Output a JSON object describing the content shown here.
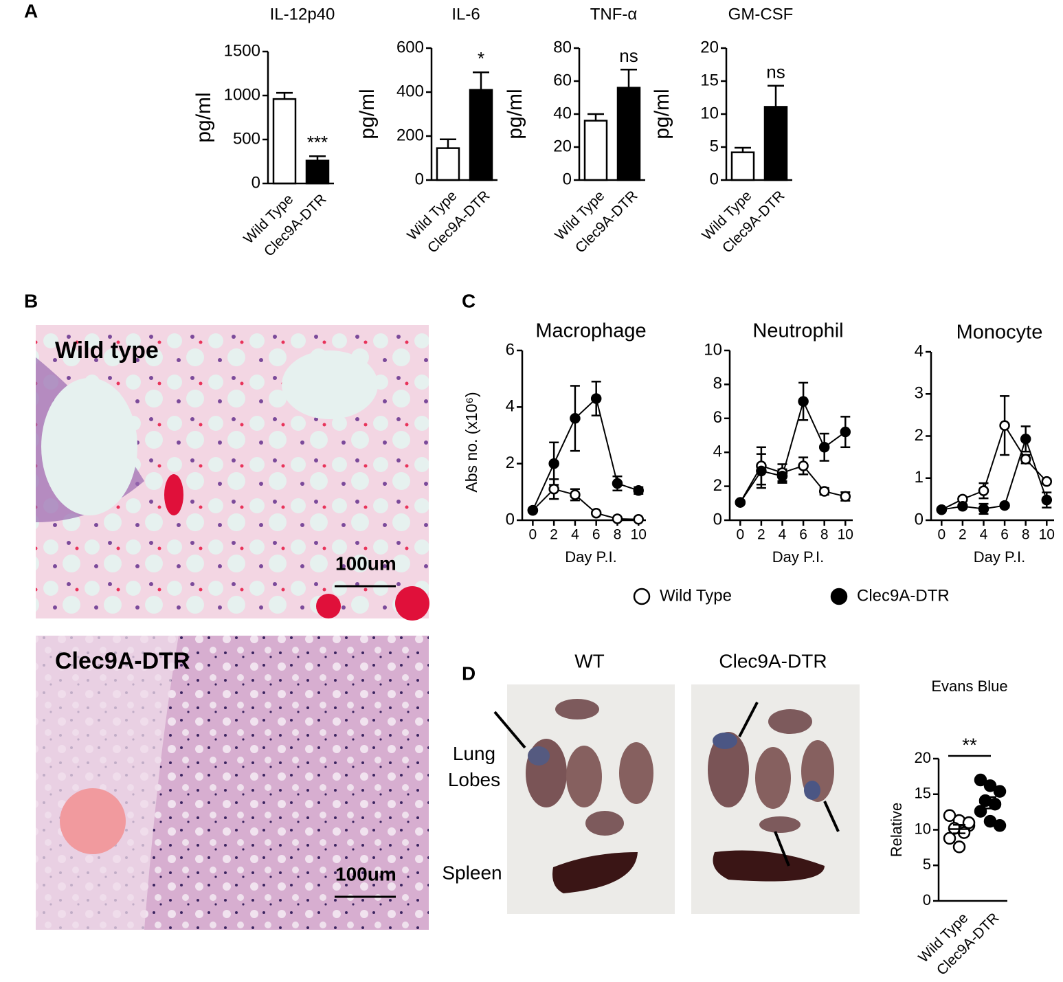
{
  "panel_labels": [
    "A",
    "B",
    "C",
    "D"
  ],
  "histology": [
    {
      "label": "Wild type",
      "scale_bar": "100um"
    },
    {
      "label": "Clec9A-DTR",
      "scale_bar": "100um"
    }
  ],
  "photos": {
    "columns": [
      "WT",
      "Clec9A-DTR"
    ],
    "row_labels": [
      "Lung Lobes",
      "Spleen"
    ]
  },
  "chart_data": [
    {
      "type": "bar",
      "title": "IL-12p40",
      "y_label": "pg/ml",
      "categories": [
        "Wild Type",
        "Clec9A-DTR"
      ],
      "values": [
        960,
        260
      ],
      "errors": [
        70,
        50
      ],
      "colors": [
        "#ffffff",
        "#000000"
      ],
      "annotation": "***",
      "ylim": [
        0,
        1500
      ],
      "yticks": [
        0,
        500,
        1000,
        1500
      ]
    },
    {
      "type": "bar",
      "title": "IL-6",
      "y_label": "pg/ml",
      "categories": [
        "Wild Type",
        "Clec9A-DTR"
      ],
      "values": [
        145,
        410
      ],
      "errors": [
        40,
        80
      ],
      "colors": [
        "#ffffff",
        "#000000"
      ],
      "annotation": "*",
      "ylim": [
        0,
        600
      ],
      "yticks": [
        0,
        200,
        400,
        600
      ]
    },
    {
      "type": "bar",
      "title": "TNF-α",
      "y_label": "pg/ml",
      "categories": [
        "Wild Type",
        "Clec9A-DTR"
      ],
      "values": [
        36,
        56
      ],
      "errors": [
        4,
        11
      ],
      "colors": [
        "#ffffff",
        "#000000"
      ],
      "annotation": "ns",
      "ylim": [
        0,
        80
      ],
      "yticks": [
        0,
        20,
        40,
        60,
        80
      ]
    },
    {
      "type": "bar",
      "title": "GM-CSF",
      "y_label": "pg/ml",
      "categories": [
        "Wild Type",
        "Clec9A-DTR"
      ],
      "values": [
        4.2,
        11.1
      ],
      "errors": [
        0.7,
        3.2
      ],
      "colors": [
        "#ffffff",
        "#000000"
      ],
      "annotation": "ns",
      "ylim": [
        0,
        20
      ],
      "yticks": [
        0,
        5,
        10,
        15,
        20
      ]
    },
    {
      "type": "line",
      "title": "Macrophage",
      "y_label": "Abs no. (x10⁶)",
      "x_label": "Day P.I.",
      "x": [
        0,
        2,
        4,
        6,
        8,
        10
      ],
      "xlim": [
        -1,
        10.7
      ],
      "xticks": [
        0,
        2,
        4,
        6,
        8,
        10
      ],
      "ylim": [
        0,
        6
      ],
      "yticks": [
        0,
        2,
        4,
        6
      ],
      "series": [
        {
          "name": "Wild Type",
          "color": "#ffffff",
          "values": [
            0.35,
            1.1,
            0.9,
            0.25,
            0.05,
            0.03
          ],
          "errors": [
            0.05,
            0.35,
            0.2,
            0.05,
            0.02,
            0.02
          ]
        },
        {
          "name": "Clec9A-DTR",
          "color": "#000000",
          "values": [
            0.35,
            2.0,
            3.6,
            4.3,
            1.3,
            1.05
          ],
          "errors": [
            0.05,
            0.75,
            1.15,
            0.6,
            0.25,
            0.12
          ]
        }
      ]
    },
    {
      "type": "line",
      "title": "Neutrophil",
      "x_label": "Day P.I.",
      "x": [
        0,
        2,
        4,
        6,
        8,
        10
      ],
      "xlim": [
        -1,
        10.7
      ],
      "xticks": [
        0,
        2,
        4,
        6,
        8,
        10
      ],
      "ylim": [
        0,
        10
      ],
      "yticks": [
        0,
        2,
        4,
        6,
        8,
        10
      ],
      "series": [
        {
          "name": "Wild Type",
          "color": "#ffffff",
          "values": [
            1.05,
            3.2,
            2.8,
            3.2,
            1.7,
            1.4
          ],
          "errors": [
            0.1,
            1.1,
            0.5,
            0.5,
            0.2,
            0.25
          ]
        },
        {
          "name": "Clec9A-DTR",
          "color": "#000000",
          "values": [
            1.05,
            2.9,
            2.6,
            7.0,
            4.3,
            5.2
          ],
          "errors": [
            0.1,
            1.0,
            0.4,
            1.1,
            0.8,
            0.9
          ]
        }
      ]
    },
    {
      "type": "line",
      "title": "Monocyte",
      "x_label": "Day P.I.",
      "x": [
        0,
        2,
        4,
        6,
        8,
        10
      ],
      "xlim": [
        -1,
        10.7
      ],
      "xticks": [
        0,
        2,
        4,
        6,
        8,
        10
      ],
      "ylim": [
        0,
        4
      ],
      "yticks": [
        0,
        1,
        2,
        3,
        4
      ],
      "series": [
        {
          "name": "Wild Type",
          "color": "#ffffff",
          "values": [
            0.25,
            0.5,
            0.7,
            2.25,
            1.45,
            0.92
          ],
          "errors": [
            0.03,
            0.05,
            0.18,
            0.7,
            0.1,
            0.05
          ]
        },
        {
          "name": "Clec9A-DTR",
          "color": "#000000",
          "values": [
            0.25,
            0.33,
            0.27,
            0.35,
            1.93,
            0.48
          ],
          "errors": [
            0.03,
            0.04,
            0.12,
            0.04,
            0.3,
            0.18
          ]
        }
      ]
    },
    {
      "type": "strip",
      "title": "Evans Blue",
      "y_label": "Relative",
      "categories": [
        "Wild Type",
        "Clec9A-DTR"
      ],
      "annotation": "**",
      "ylim": [
        0,
        20
      ],
      "yticks": [
        0,
        5,
        10,
        15,
        20
      ],
      "groups": [
        {
          "color": "#ffffff",
          "values": [
            12,
            11.3,
            10.6,
            10.2,
            9.6,
            8.8,
            7.6,
            11.0
          ],
          "mean": 10.1,
          "error": 0.6
        },
        {
          "color": "#000000",
          "values": [
            17,
            16.2,
            15.4,
            14.1,
            13.6,
            12.6,
            11.2,
            10.6
          ],
          "mean": 13.8,
          "error": 0.8
        }
      ]
    }
  ]
}
